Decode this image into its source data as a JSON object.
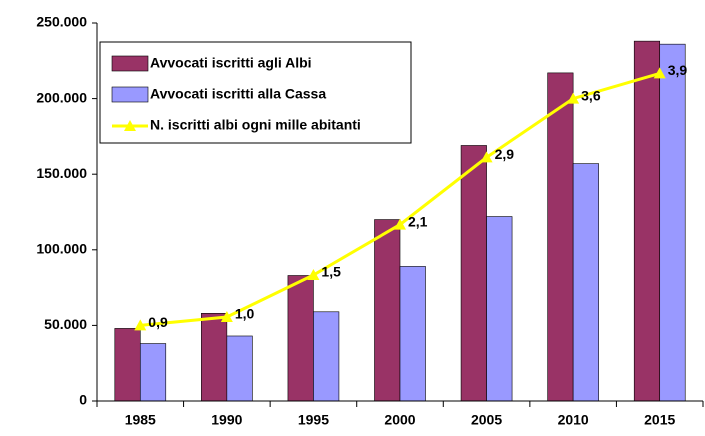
{
  "chart_data": {
    "type": "bar",
    "categories": [
      "1985",
      "1990",
      "1995",
      "2000",
      "2005",
      "2010",
      "2015"
    ],
    "series": [
      {
        "name": "Avvocati iscritti agli Albi",
        "color": "#993366",
        "values": [
          48000,
          58000,
          83000,
          120000,
          169000,
          217000,
          238000
        ]
      },
      {
        "name": "Avvocati iscritti alla Cassa",
        "color": "#9999ff",
        "values": [
          38000,
          43000,
          59000,
          89000,
          122000,
          157000,
          236000
        ]
      },
      {
        "name": "N. iscritti albi ogni mille abitanti",
        "color": "#ffff00",
        "type": "line",
        "axis": "y2",
        "values": [
          0.9,
          1.0,
          1.5,
          2.1,
          2.9,
          3.6,
          3.9
        ],
        "value_labels": [
          "0,9",
          "1,0",
          "1,5",
          "2,1",
          "2,9",
          "3,6",
          "3,9"
        ]
      }
    ],
    "ylim": [
      0,
      250000
    ],
    "yticks": [
      0,
      {
        "value": 50000,
        "label": "50.000"
      },
      {
        "value": 100000,
        "label": "100.000"
      },
      {
        "value": 150000,
        "label": "150.000"
      },
      {
        "value": 200000,
        "label": "200.000"
      },
      {
        "value": 250000,
        "label": "250.000"
      }
    ],
    "y2lim": [
      0,
      4.5
    ],
    "legend": "top-left"
  }
}
